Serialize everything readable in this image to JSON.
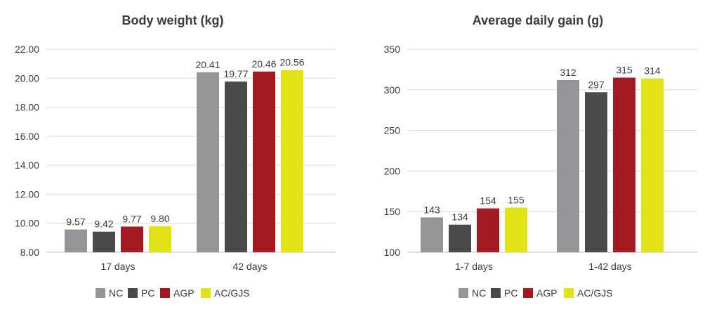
{
  "colors": {
    "NC": "#939598",
    "PC": "#4a4a4c",
    "AGP": "#a31a20",
    "AC/GJS": "#e2e219",
    "grid": "#d9d9d9",
    "axis": "#bfbfbf"
  },
  "chart_data": [
    {
      "type": "bar",
      "title": "Body weight (kg)",
      "categories": [
        "17 days",
        "42 days"
      ],
      "series": [
        {
          "name": "NC",
          "values": [
            9.57,
            20.41
          ]
        },
        {
          "name": "PC",
          "values": [
            9.42,
            19.77
          ]
        },
        {
          "name": "AGP",
          "values": [
            9.77,
            20.46
          ]
        },
        {
          "name": "AC/GJS",
          "values": [
            9.8,
            20.56
          ]
        }
      ],
      "data_labels": [
        [
          "9.57",
          "20.41"
        ],
        [
          "9.42",
          "19.77"
        ],
        [
          "9.77",
          "20.46"
        ],
        [
          "9.80",
          "20.56"
        ]
      ],
      "ylim": [
        8,
        22
      ],
      "yticks": [
        8,
        10,
        12,
        14,
        16,
        18,
        20,
        22
      ],
      "ytick_labels": [
        "8.00",
        "10.00",
        "12.00",
        "14.00",
        "16.00",
        "18.00",
        "20.00",
        "22.00"
      ],
      "grid": true,
      "legend": "bottom"
    },
    {
      "type": "bar",
      "title": "Average daily gain (g)",
      "categories": [
        "1-7 days",
        "1-42 days"
      ],
      "series": [
        {
          "name": "NC",
          "values": [
            143,
            312
          ]
        },
        {
          "name": "PC",
          "values": [
            134,
            297
          ]
        },
        {
          "name": "AGP",
          "values": [
            154,
            315
          ]
        },
        {
          "name": "AC/GJS",
          "values": [
            155,
            314
          ]
        }
      ],
      "data_labels": [
        [
          "143",
          "312"
        ],
        [
          "134",
          "297"
        ],
        [
          "154",
          "315"
        ],
        [
          "155",
          "314"
        ]
      ],
      "ylim": [
        100,
        350
      ],
      "yticks": [
        100,
        150,
        200,
        250,
        300,
        350
      ],
      "ytick_labels": [
        "100",
        "150",
        "200",
        "250",
        "300",
        "350"
      ],
      "grid": true,
      "legend": "bottom"
    }
  ]
}
